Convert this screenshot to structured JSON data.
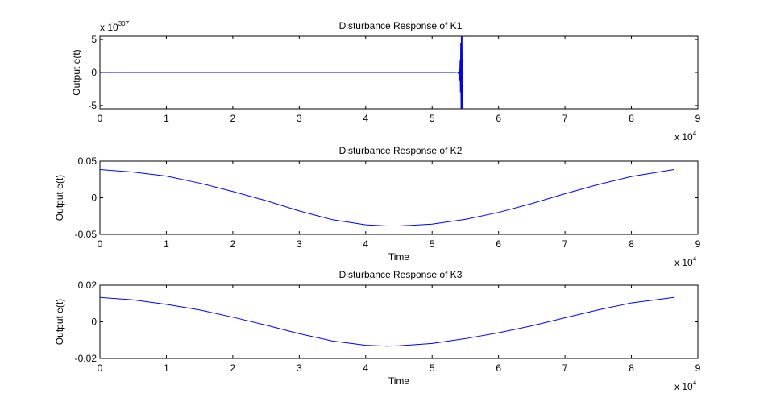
{
  "colors": {
    "series": "#0000ff",
    "axes": "#000000",
    "background": "#ffffff"
  },
  "chart_data": [
    {
      "type": "line",
      "title": "Disturbance Response of K1",
      "xlabel": "",
      "ylabel": "Output e(t)",
      "xlim": [
        0,
        90000
      ],
      "ylim": [
        -5.5,
        5.5
      ],
      "x_multiplier": {
        "base": "x 10",
        "exponent": "4"
      },
      "y_multiplier": {
        "base": "x 10",
        "exponent": "307"
      },
      "xticks": [
        0,
        10000,
        20000,
        30000,
        40000,
        50000,
        60000,
        70000,
        80000,
        90000
      ],
      "xtick_labels": [
        "0",
        "1",
        "2",
        "3",
        "4",
        "5",
        "6",
        "7",
        "8",
        "9"
      ],
      "yticks": [
        5,
        0,
        -5
      ],
      "ytick_labels": [
        "5",
        "0",
        "-5"
      ],
      "grid": false,
      "series": [
        {
          "x": [
            0,
            53500,
            53800,
            54000,
            54100,
            54150,
            54200,
            54250,
            54300,
            54350,
            54400,
            54450,
            54500,
            54550
          ],
          "y": [
            0,
            0,
            0.05,
            -0.2,
            0.4,
            -1.2,
            1.8,
            -3,
            4.5,
            -5.5,
            5.5,
            -5.5,
            5.5,
            -5.5
          ]
        }
      ]
    },
    {
      "type": "line",
      "title": "Disturbance Response of K2",
      "xlabel": "Time",
      "ylabel": "Output e(t)",
      "xlim": [
        0,
        90000
      ],
      "ylim": [
        -0.05,
        0.05
      ],
      "x_multiplier": {
        "base": "x 10",
        "exponent": "4"
      },
      "xticks": [
        0,
        10000,
        20000,
        30000,
        40000,
        50000,
        60000,
        70000,
        80000,
        90000
      ],
      "xtick_labels": [
        "0",
        "1",
        "2",
        "3",
        "4",
        "5",
        "6",
        "7",
        "8",
        "9"
      ],
      "yticks": [
        0.05,
        0,
        -0.05
      ],
      "ytick_labels": [
        "0.05",
        "0",
        "-0.05"
      ],
      "grid": false,
      "series": [
        {
          "x": [
            0,
            5000,
            10000,
            15000,
            20000,
            25000,
            30000,
            35000,
            40000,
            43200,
            45000,
            50000,
            55000,
            60000,
            65000,
            70000,
            75000,
            80000,
            86400
          ],
          "y": [
            0.0385,
            0.035,
            0.0295,
            0.02,
            0.0085,
            -0.004,
            -0.018,
            -0.03,
            -0.037,
            -0.0385,
            -0.0385,
            -0.036,
            -0.0295,
            -0.02,
            -0.008,
            0.0055,
            0.018,
            0.029,
            0.0385
          ]
        }
      ]
    },
    {
      "type": "line",
      "title": "Disturbance Response of K3",
      "xlabel": "Time",
      "ylabel": "Output e(t)",
      "xlim": [
        0,
        90000
      ],
      "ylim": [
        -0.02,
        0.02
      ],
      "x_multiplier": {
        "base": "x 10",
        "exponent": "4"
      },
      "xticks": [
        0,
        10000,
        20000,
        30000,
        40000,
        50000,
        60000,
        70000,
        80000,
        90000
      ],
      "xtick_labels": [
        "0",
        "1",
        "2",
        "3",
        "4",
        "5",
        "6",
        "7",
        "8",
        "9"
      ],
      "yticks": [
        0.02,
        0,
        -0.02
      ],
      "ytick_labels": [
        "0.02",
        "0",
        "-0.02"
      ],
      "grid": false,
      "series": [
        {
          "x": [
            0,
            5000,
            10000,
            15000,
            20000,
            25000,
            30000,
            35000,
            40000,
            43200,
            45000,
            50000,
            55000,
            60000,
            65000,
            70000,
            75000,
            80000,
            86400
          ],
          "y": [
            0.0133,
            0.012,
            0.0095,
            0.0065,
            0.0025,
            -0.0018,
            -0.0065,
            -0.0105,
            -0.0128,
            -0.0133,
            -0.0131,
            -0.0118,
            -0.0092,
            -0.006,
            -0.0022,
            0.0022,
            0.0065,
            0.0103,
            0.0133
          ]
        }
      ]
    }
  ]
}
